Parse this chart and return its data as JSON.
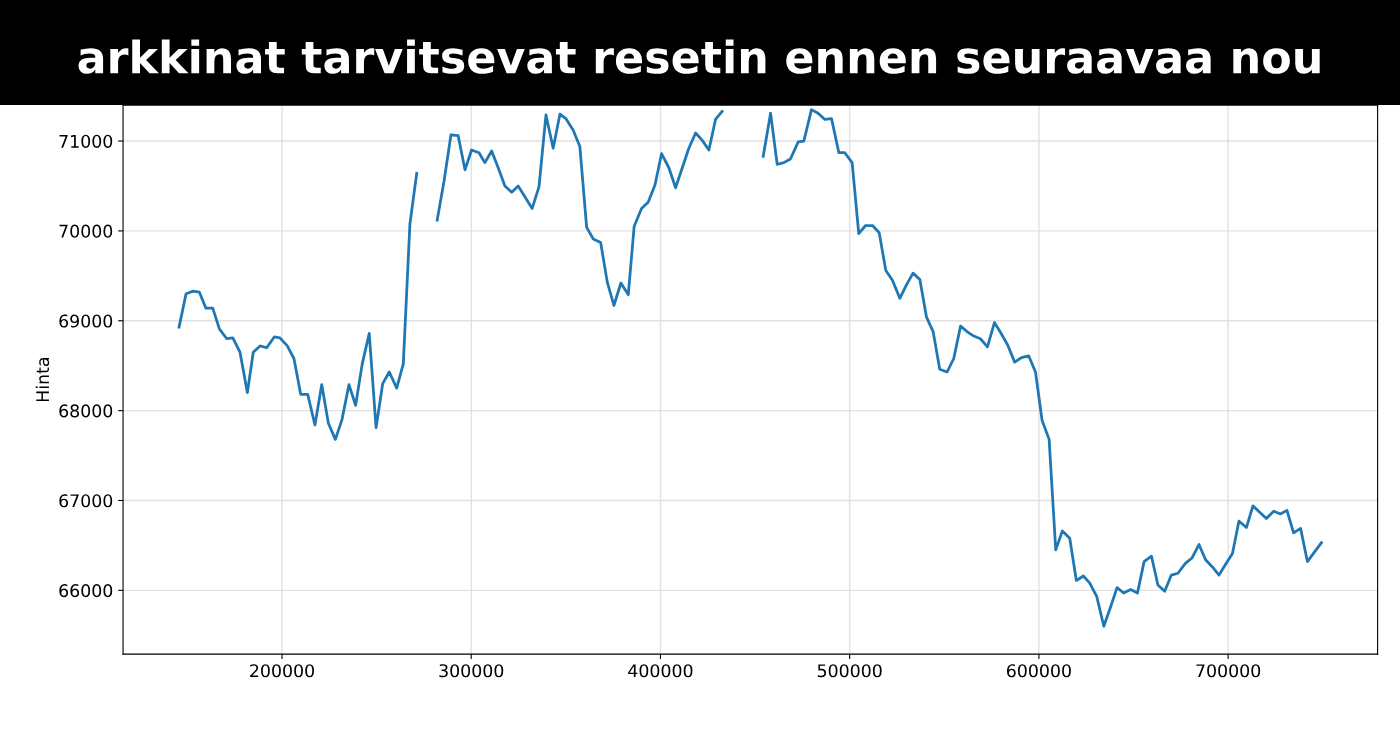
{
  "chart_data": {
    "type": "line",
    "title": "arkkinat tarvitsevat resetin ennen seuraavaa nou",
    "ylabel": "Hinta",
    "x": [
      145600,
      149300,
      153100,
      156300,
      159800,
      163400,
      166900,
      170800,
      174000,
      177800,
      181700,
      184800,
      188400,
      191900,
      195900,
      198900,
      202800,
      206300,
      209900,
      213600,
      217400,
      221000,
      224500,
      228200,
      231700,
      235400,
      238900,
      242400,
      246100,
      249700,
      253200,
      256700,
      260600,
      264100,
      267600,
      271200,
      276300,
      282000,
      285600,
      289300,
      293100,
      296700,
      300200,
      304100,
      307200,
      310800,
      314300,
      317800,
      321400,
      324800,
      328700,
      332200,
      335800,
      339500,
      343300,
      346900,
      350000,
      353900,
      357400,
      361000,
      364500,
      368400,
      371900,
      375400,
      379100,
      383000,
      386100,
      390000,
      393500,
      397100,
      400600,
      404500,
      408000,
      411500,
      415000,
      418600,
      422000,
      425600,
      429100,
      432600,
      442000,
      454300,
      458200,
      461700,
      465200,
      468700,
      472800,
      475800,
      479800,
      483300,
      486900,
      490400,
      494300,
      497400,
      501300,
      504800,
      508400,
      512100,
      515600,
      519100,
      522600,
      526500,
      530000,
      533500,
      537100,
      540600,
      544100,
      547600,
      551500,
      555000,
      558600,
      562000,
      565600,
      569100,
      572800,
      576500,
      580000,
      583500,
      587200,
      590800,
      594600,
      598200,
      601700,
      605400,
      608900,
      612400,
      616300,
      619800,
      623500,
      626900,
      630600,
      634300,
      637800,
      641300,
      644800,
      648500,
      652100,
      655600,
      659500,
      662900,
      666500,
      670000,
      673500,
      677400,
      680900,
      684600,
      688100,
      691700,
      695200,
      698700,
      702300,
      705700,
      709700,
      713100,
      716700,
      720200,
      724100,
      727600,
      731100,
      734600,
      738300,
      741900,
      745400,
      749300
    ],
    "series": [
      {
        "color": "#1f77b4",
        "values": [
          68930,
          69300,
          69330,
          69320,
          69140,
          69140,
          68910,
          68800,
          68810,
          68650,
          68200,
          68650,
          68720,
          68700,
          68820,
          68810,
          68720,
          68580,
          68180,
          68180,
          67840,
          68290,
          67860,
          67680,
          67900,
          68290,
          68060,
          68520,
          68860,
          67810,
          68300,
          68430,
          68250,
          68520,
          70080,
          70640,
          null,
          70120,
          70550,
          71070,
          71060,
          70680,
          70900,
          70870,
          70760,
          70890,
          70700,
          70500,
          70430,
          70500,
          70370,
          70250,
          70490,
          71290,
          70920,
          71300,
          71250,
          71120,
          70940,
          70040,
          69910,
          69870,
          69430,
          69170,
          69420,
          69290,
          70050,
          70250,
          70320,
          70510,
          70860,
          70700,
          70480,
          70700,
          70920,
          71090,
          71010,
          70900,
          71240,
          71330,
          null,
          70830,
          71310,
          70740,
          70760,
          70800,
          70990,
          71000,
          71350,
          71310,
          71240,
          71250,
          70870,
          70870,
          70760,
          69970,
          70060,
          70060,
          69980,
          69560,
          69450,
          69250,
          69400,
          69530,
          69460,
          69040,
          68880,
          68460,
          68430,
          68580,
          68940,
          68880,
          68830,
          68800,
          68710,
          68980,
          68860,
          68730,
          68540,
          68590,
          68610,
          68430,
          67890,
          67680,
          66450,
          66660,
          66580,
          66110,
          66160,
          66080,
          65930,
          65600,
          65810,
          66030,
          65970,
          66010,
          65970,
          66320,
          66380,
          66060,
          65990,
          66170,
          66190,
          66300,
          66360,
          66510,
          66340,
          66260,
          66170,
          66290,
          66410,
          66770,
          66700,
          66940,
          66870,
          66800,
          66880,
          66850,
          66890,
          66640,
          66690,
          66320,
          66420,
          66530
        ]
      }
    ],
    "line_style": "solid",
    "xlim": [
      116000,
      779000
    ],
    "ylim": [
      65290,
      71400
    ],
    "xticks": [
      200000,
      300000,
      400000,
      500000,
      600000,
      700000
    ],
    "yticks": [
      66000,
      67000,
      68000,
      69000,
      70000,
      71000
    ],
    "grid": true
  }
}
